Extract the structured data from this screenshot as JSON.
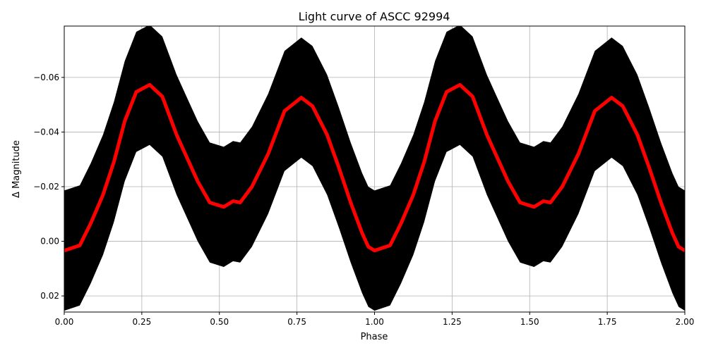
{
  "chart_data": {
    "type": "scatter",
    "title": "Light curve of ASCC 92994",
    "xlabel": "Phase",
    "ylabel": "Δ Magnitude",
    "xlim": [
      0,
      2
    ],
    "ylim": [
      0.0259,
      -0.0788
    ],
    "y_inverted": true,
    "grid": true,
    "x_ticks": [
      0,
      0.25,
      0.5,
      0.75,
      1.0,
      1.25,
      1.5,
      1.75,
      2.0
    ],
    "x_tick_labels": [
      "0.00",
      "0.25",
      "0.50",
      "0.75",
      "1.00",
      "1.25",
      "1.50",
      "1.75",
      "2.00"
    ],
    "y_ticks": [
      -0.06,
      -0.04,
      -0.02,
      0.0,
      0.02
    ],
    "y_tick_labels": [
      "−0.06",
      "−0.04",
      "−0.02",
      "0.00",
      "0.02"
    ],
    "period_repeats": 2,
    "observations": {
      "color": "#000000",
      "style": "points with vertical error bars",
      "spread_about_mean": 0.022
    },
    "mean_curve": {
      "color": "#ff0000",
      "phase": [
        0.0,
        0.05,
        0.085,
        0.125,
        0.16,
        0.195,
        0.232,
        0.275,
        0.316,
        0.362,
        0.39,
        0.43,
        0.469,
        0.514,
        0.544,
        0.567,
        0.605,
        0.657,
        0.71,
        0.764,
        0.8,
        0.847,
        0.885,
        0.923,
        0.96,
        0.98,
        1.0
      ],
      "delta_mag": [
        0.0034,
        0.0015,
        -0.0065,
        -0.017,
        -0.029,
        -0.044,
        -0.0547,
        -0.0573,
        -0.053,
        -0.039,
        -0.032,
        -0.022,
        -0.0142,
        -0.0126,
        -0.0147,
        -0.0142,
        -0.02,
        -0.032,
        -0.0477,
        -0.0526,
        -0.0495,
        -0.039,
        -0.027,
        -0.0142,
        -0.003,
        0.002,
        0.0034
      ]
    }
  }
}
